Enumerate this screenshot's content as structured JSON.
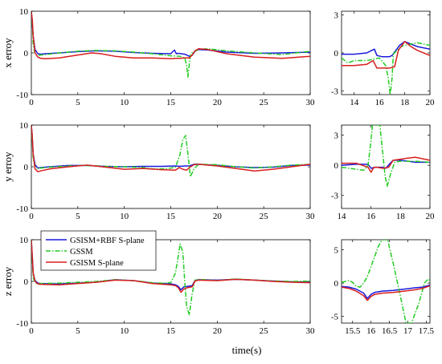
{
  "colors": {
    "gsism_rbf": "#1a1adc",
    "gssm": "#22cc22",
    "gsism_s": "#d81e1e",
    "axis": "#000000"
  },
  "xlabel": "time(s)",
  "legend": {
    "location": "top-left of bottom-left panel",
    "entries": [
      "GSISM+RBF S-plane",
      "GSSM",
      "GSISM S-plane"
    ]
  },
  "chart_data": [
    {
      "type": "line",
      "id": "x_main",
      "ylabel": "x erroy",
      "xlim": [
        0,
        30
      ],
      "ylim": [
        -10,
        10
      ],
      "xticks": [
        0,
        5,
        10,
        15,
        20,
        25,
        30
      ],
      "yticks": [
        -10,
        0,
        10
      ],
      "series": [
        {
          "name": "GSISM+RBF S-plane",
          "x": [
            0,
            0.08,
            0.2,
            0.4,
            0.7,
            1,
            1.5,
            3,
            5,
            7,
            9,
            11,
            13,
            15,
            15.4,
            15.6,
            15.8,
            16.5,
            17,
            17.3,
            17.6,
            18,
            19,
            21,
            24,
            27,
            30
          ],
          "y": [
            9.8,
            8,
            4,
            0.8,
            -0.2,
            -0.3,
            -0.2,
            0,
            0.3,
            0.5,
            0.4,
            0.1,
            -0.1,
            -0.2,
            0.7,
            -0.2,
            -0.1,
            -0.3,
            -0.8,
            -0.6,
            0.4,
            0.8,
            0.7,
            0.2,
            -0.1,
            0,
            0.2
          ]
        },
        {
          "name": "GSSM",
          "x": [
            0,
            0.1,
            0.2,
            0.4,
            0.7,
            1,
            1.5,
            3,
            5,
            7,
            9,
            11,
            13,
            15,
            16,
            16.5,
            16.7,
            16.85,
            17,
            17.15,
            17.4,
            17.8,
            18,
            19,
            21,
            24,
            27,
            30
          ],
          "y": [
            9.8,
            7,
            2,
            -0.3,
            -0.6,
            -0.5,
            -0.4,
            0,
            0.4,
            0.6,
            0.5,
            0.2,
            -0.2,
            -0.7,
            -0.8,
            -1.2,
            -3,
            -5.8,
            -2.5,
            -0.2,
            0.2,
            0.6,
            0.9,
            1,
            0.5,
            0,
            -0.4,
            0.4
          ]
        },
        {
          "name": "GSISM S-plane",
          "x": [
            0,
            0.1,
            0.2,
            0.4,
            0.7,
            1,
            1.5,
            3,
            5,
            6.5,
            7.5,
            9,
            11,
            13,
            15,
            15.6,
            16,
            16.5,
            17,
            17.3,
            17.6,
            18,
            19,
            21,
            24,
            27,
            30
          ],
          "y": [
            9.8,
            8,
            4,
            0,
            -1,
            -1.3,
            -1.4,
            -1.2,
            -0.5,
            0,
            -0.2,
            -0.8,
            -1.2,
            -1.2,
            -1.4,
            -1.3,
            -1.3,
            -1.2,
            -1.2,
            -0.5,
            0.5,
            1,
            0.8,
            -0.2,
            -1,
            -1.3,
            -0.8
          ]
        }
      ]
    },
    {
      "type": "line",
      "id": "x_zoom",
      "ylabel": "",
      "xlim": [
        13,
        20
      ],
      "ylim": [
        -3.3,
        3.3
      ],
      "xticks": [
        14,
        16,
        18,
        20
      ],
      "yticks": [
        -3,
        0,
        3
      ],
      "series": [
        {
          "name": "GSISM+RBF S-plane",
          "x": [
            13,
            14,
            15,
            15.4,
            15.6,
            15.8,
            16.2,
            16.8,
            17,
            17.3,
            17.6,
            18,
            18.5,
            19,
            20
          ],
          "y": [
            -0.1,
            -0.1,
            0,
            0.2,
            0.3,
            -0.2,
            -0.3,
            -0.3,
            -0.2,
            0.2,
            0.6,
            0.9,
            0.7,
            0.5,
            0.3
          ]
        },
        {
          "name": "GSSM",
          "x": [
            13,
            13.5,
            14,
            15,
            15.5,
            16,
            16.5,
            16.7,
            16.85,
            17,
            17.1,
            17.4,
            17.7,
            18,
            18.5,
            19,
            20
          ],
          "y": [
            -0.4,
            -0.8,
            -0.6,
            -0.6,
            -0.5,
            -0.4,
            -1,
            -2,
            -3.3,
            -2,
            -0.1,
            0.2,
            0.5,
            0.6,
            0.7,
            0.8,
            0.6
          ]
        },
        {
          "name": "GSISM S-plane",
          "x": [
            13,
            14,
            15,
            15.5,
            15.8,
            16.3,
            16.8,
            17.2,
            17.5,
            18,
            18.5,
            19,
            20
          ],
          "y": [
            -1,
            -1,
            -0.9,
            -0.6,
            -1.2,
            -1.2,
            -1.2,
            -1.1,
            0.2,
            0.9,
            0.5,
            0.2,
            -0.2
          ]
        }
      ]
    },
    {
      "type": "line",
      "id": "y_main",
      "ylabel": "y erroy",
      "xlim": [
        0,
        30
      ],
      "ylim": [
        -10,
        10
      ],
      "xticks": [
        0,
        5,
        10,
        15,
        20,
        25,
        30
      ],
      "yticks": [
        -10,
        0,
        10
      ],
      "series": [
        {
          "name": "GSISM+RBF S-plane",
          "x": [
            0,
            0.08,
            0.2,
            0.4,
            0.7,
            1,
            2,
            4,
            6,
            8,
            10,
            12,
            14,
            15.5,
            16,
            16.5,
            17,
            17.5,
            18,
            20,
            22,
            24,
            26,
            28,
            30
          ],
          "y": [
            9.8,
            8,
            3,
            0.5,
            -0.3,
            -0.2,
            0,
            0.3,
            0.3,
            0.1,
            0,
            0.1,
            0.1,
            0.2,
            0.1,
            0.2,
            0.2,
            0.6,
            0.6,
            0.3,
            0,
            -0.2,
            -0.1,
            0.3,
            0.4
          ]
        },
        {
          "name": "GSSM",
          "x": [
            0,
            0.1,
            0.2,
            0.4,
            0.7,
            1,
            2,
            4,
            6,
            8,
            10,
            12,
            13,
            14,
            15,
            15.5,
            16,
            16.3,
            16.6,
            16.9,
            17.1,
            17.5,
            18,
            20,
            22,
            24,
            26,
            28,
            30
          ],
          "y": [
            9.8,
            6,
            2,
            0,
            -0.4,
            -0.3,
            -0.1,
            0.2,
            0.3,
            0.1,
            0,
            -0.2,
            -0.5,
            -0.5,
            -0.3,
            -0.1,
            3,
            6.5,
            7.5,
            2,
            -2.4,
            -0.5,
            0.6,
            0.5,
            0,
            -0.3,
            0,
            0.4,
            0.6
          ]
        },
        {
          "name": "GSISM S-plane",
          "x": [
            0,
            0.08,
            0.2,
            0.4,
            0.7,
            1,
            2,
            4,
            6,
            8,
            10,
            12,
            14,
            15.5,
            15.9,
            16.3,
            16.7,
            17,
            17.5,
            18,
            20,
            22,
            24,
            26,
            28,
            30
          ],
          "y": [
            9.8,
            8,
            3,
            -0.5,
            -1.2,
            -1,
            -0.5,
            0,
            0.4,
            -0.1,
            -0.6,
            -0.4,
            -0.7,
            -0.8,
            -0.2,
            -0.6,
            -0.8,
            -0.2,
            0.5,
            0.6,
            0.2,
            -0.4,
            -1,
            -0.6,
            0,
            0.6
          ]
        }
      ]
    },
    {
      "type": "line",
      "id": "y_zoom",
      "ylabel": "",
      "xlim": [
        14,
        20
      ],
      "ylim": [
        -4.3,
        4
      ],
      "xticks": [
        14,
        16,
        18,
        20
      ],
      "yticks": [
        -3,
        0,
        3
      ],
      "series": [
        {
          "name": "GSISM+RBF S-plane",
          "x": [
            14,
            15,
            15.8,
            16,
            16.3,
            16.8,
            17,
            17.3,
            17.5,
            18,
            18.5,
            19,
            20
          ],
          "y": [
            0,
            0.1,
            0.1,
            -0.3,
            -0.2,
            -0.2,
            -0.3,
            0.2,
            0.5,
            0.5,
            0.4,
            0.3,
            0.3
          ]
        },
        {
          "name": "GSSM",
          "x": [
            14,
            15,
            15.5,
            15.8,
            16,
            16.1,
            16.4,
            16.6,
            16.8,
            16.95,
            17.1,
            17.3,
            17.6,
            18,
            19,
            20
          ],
          "y": [
            -0.2,
            -0.4,
            -0.5,
            0,
            2.5,
            4,
            4,
            4,
            1.2,
            -1,
            -2.1,
            -1,
            0.3,
            0.4,
            0.4,
            0.3
          ]
        },
        {
          "name": "GSISM S-plane",
          "x": [
            14,
            15,
            15.8,
            16,
            16.2,
            16.4,
            16.8,
            17.2,
            17.5,
            18,
            18.5,
            19,
            20
          ],
          "y": [
            0.2,
            0.2,
            -0.2,
            -0.7,
            -0.2,
            -0.2,
            -0.3,
            -0.2,
            0.5,
            0.6,
            0.7,
            0.8,
            0.5
          ]
        }
      ]
    },
    {
      "type": "line",
      "id": "z_main",
      "ylabel": "z erroy",
      "xlim": [
        0,
        30
      ],
      "ylim": [
        -10,
        10
      ],
      "xticks": [
        0,
        5,
        10,
        15,
        20,
        25,
        30
      ],
      "yticks": [
        -10,
        0,
        10
      ],
      "series": [
        {
          "name": "GSISM+RBF S-plane",
          "x": [
            0,
            0.1,
            0.2,
            0.4,
            0.7,
            1,
            3,
            5,
            7,
            9,
            11,
            13,
            15,
            15.5,
            15.8,
            16.1,
            16.4,
            16.8,
            17.3,
            17.6,
            18,
            20,
            22,
            24,
            26,
            28,
            30
          ],
          "y": [
            9.8,
            6,
            2,
            0.2,
            -0.4,
            -0.5,
            -0.6,
            -0.4,
            -0.2,
            0.4,
            0.2,
            -0.4,
            -0.6,
            -0.8,
            -1.2,
            -2,
            -1.3,
            -1.2,
            -1,
            0.2,
            0.4,
            0.3,
            0.5,
            0.3,
            0.1,
            -0.1,
            -0.2
          ]
        },
        {
          "name": "GSSM",
          "x": [
            0,
            0.1,
            0.2,
            0.4,
            0.7,
            1,
            3,
            5,
            7,
            9,
            11,
            13,
            14,
            15,
            15.5,
            15.8,
            16,
            16.3,
            16.5,
            16.7,
            17,
            17.3,
            17.6,
            18,
            20,
            22,
            24,
            26,
            28,
            30
          ],
          "y": [
            9.8,
            5,
            1,
            -0.3,
            -0.6,
            -0.5,
            -0.4,
            -0.2,
            0,
            0.4,
            0.2,
            -0.3,
            -0.4,
            -0.3,
            2,
            6,
            9,
            7,
            0,
            -6,
            -8,
            -3,
            0.3,
            0.5,
            0.2,
            0.6,
            0.3,
            0.1,
            0,
            0.1
          ]
        },
        {
          "name": "GSISM S-plane",
          "x": [
            0,
            0.1,
            0.2,
            0.4,
            0.7,
            1,
            3,
            5,
            7,
            9,
            11,
            13,
            15,
            15.5,
            15.8,
            16.1,
            16.4,
            16.8,
            17.3,
            17.6,
            18,
            20,
            22,
            24,
            26,
            28,
            30
          ],
          "y": [
            9.8,
            6,
            2,
            0,
            -0.6,
            -0.7,
            -0.8,
            -0.5,
            -0.2,
            0.3,
            0.2,
            -0.5,
            -0.8,
            -1,
            -1.5,
            -2.6,
            -1.8,
            -1.5,
            -1.3,
            0.1,
            0.3,
            0.2,
            0.5,
            0.3,
            0,
            -0.2,
            -0.3
          ]
        }
      ]
    },
    {
      "type": "line",
      "id": "z_zoom",
      "ylabel": "",
      "xlim": [
        15.2,
        17.6
      ],
      "ylim": [
        -6,
        6.5
      ],
      "xticks": [
        15.5,
        16,
        16.5,
        17,
        17.5
      ],
      "yticks": [
        -5,
        0,
        5
      ],
      "series": [
        {
          "name": "GSISM+RBF S-plane",
          "x": [
            15.2,
            15.4,
            15.6,
            15.8,
            15.9,
            16,
            16.1,
            16.3,
            16.6,
            16.9,
            17.2,
            17.4,
            17.6
          ],
          "y": [
            -0.5,
            -0.6,
            -0.9,
            -1.5,
            -2.3,
            -1.7,
            -1.4,
            -1.2,
            -1.1,
            -0.9,
            -0.7,
            -0.6,
            -0.3
          ]
        },
        {
          "name": "GSSM",
          "x": [
            15.2,
            15.4,
            15.5,
            15.6,
            15.7,
            15.8,
            15.9,
            16,
            16.1,
            16.2,
            16.3,
            16.45,
            16.6,
            16.8,
            16.95,
            17.1,
            17.3,
            17.45,
            17.55,
            17.6
          ],
          "y": [
            0.1,
            0.4,
            0.1,
            -0.5,
            -0.6,
            0,
            1,
            2.5,
            4,
            5.5,
            6.5,
            6.5,
            3,
            -2,
            -6,
            -6,
            -3,
            0,
            0.6,
            0.4
          ]
        },
        {
          "name": "GSISM S-plane",
          "x": [
            15.2,
            15.4,
            15.6,
            15.8,
            15.9,
            16,
            16.1,
            16.3,
            16.6,
            16.9,
            17.2,
            17.4,
            17.6
          ],
          "y": [
            -0.6,
            -0.8,
            -1.2,
            -1.9,
            -2.6,
            -2,
            -1.7,
            -1.5,
            -1.4,
            -1.2,
            -1,
            -0.8,
            -0.4
          ]
        }
      ]
    }
  ]
}
